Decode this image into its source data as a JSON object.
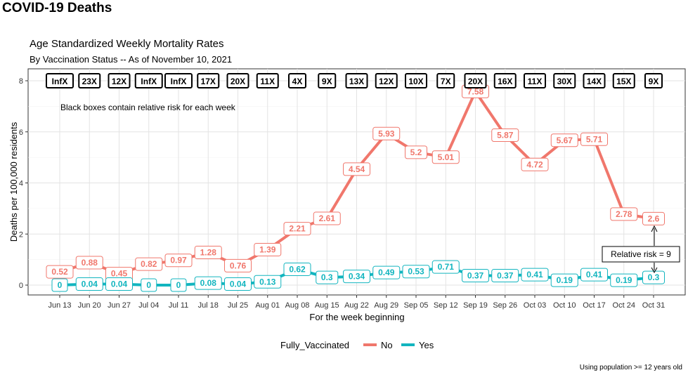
{
  "header": {
    "title": "COVID-19 Deaths"
  },
  "colors": {
    "no": "#F0776C",
    "yes": "#12B5BF"
  },
  "chart_data": {
    "type": "line",
    "title": "Age Standardized Weekly Mortality Rates",
    "subtitle": "By Vaccination Status -- As of November 10, 2021",
    "xlabel": "For the week beginning",
    "ylabel": "Deaths per 100,000 residents",
    "ylim": [
      0,
      8
    ],
    "yticks": [
      0,
      2,
      4,
      6,
      8
    ],
    "grid": true,
    "categories": [
      "Jun 13",
      "Jun 20",
      "Jun 27",
      "Jul 04",
      "Jul 11",
      "Jul 18",
      "Jul 25",
      "Aug 01",
      "Aug 08",
      "Aug 15",
      "Aug 22",
      "Aug 29",
      "Sep 05",
      "Sep 12",
      "Sep 19",
      "Sep 26",
      "Oct 03",
      "Oct 10",
      "Oct 17",
      "Oct 24",
      "Oct 31"
    ],
    "series": [
      {
        "name": "No",
        "values": [
          0.52,
          0.88,
          0.45,
          0.82,
          0.97,
          1.28,
          0.76,
          1.39,
          2.21,
          2.61,
          4.54,
          5.93,
          5.2,
          5.01,
          7.58,
          5.87,
          4.72,
          5.67,
          5.71,
          2.78,
          2.6
        ]
      },
      {
        "name": "Yes",
        "values": [
          0,
          0.04,
          0.04,
          0,
          0,
          0.08,
          0.04,
          0.13,
          0.62,
          0.3,
          0.34,
          0.49,
          0.53,
          0.71,
          0.37,
          0.37,
          0.41,
          0.19,
          0.41,
          0.19,
          0.3
        ]
      }
    ],
    "relative_risk": [
      "InfX",
      "23X",
      "12X",
      "InfX",
      "InfX",
      "17X",
      "20X",
      "11X",
      "4X",
      "9X",
      "13X",
      "12X",
      "10X",
      "7X",
      "20X",
      "16X",
      "11X",
      "30X",
      "14X",
      "15X",
      "9X"
    ],
    "annotations": {
      "note": "Black boxes contain relative risk for each week",
      "callout": "Relative risk = 9"
    },
    "legend": {
      "title": "Fully_Vaccinated",
      "position": "bottom"
    },
    "caption": "Using population >= 12 years old"
  }
}
